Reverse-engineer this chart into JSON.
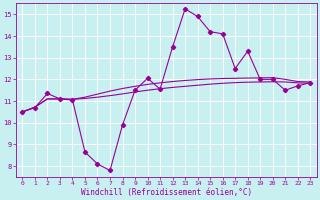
{
  "xlabel": "Windchill (Refroidissement éolien,°C)",
  "bg_color": "#c8f0f0",
  "grid_color": "#b8d8d8",
  "line_color": "#990099",
  "x_ticks": [
    0,
    1,
    2,
    3,
    4,
    5,
    6,
    7,
    8,
    9,
    10,
    11,
    12,
    13,
    14,
    15,
    16,
    17,
    18,
    19,
    20,
    21,
    22,
    23
  ],
  "ylim": [
    7.5,
    15.5
  ],
  "xlim": [
    -0.5,
    23.5
  ],
  "yticks": [
    8,
    9,
    10,
    11,
    12,
    13,
    14,
    15
  ],
  "main_line": {
    "x": [
      0,
      1,
      2,
      3,
      4,
      5,
      6,
      7,
      8,
      9,
      10,
      11,
      12,
      13,
      14,
      15,
      16,
      17,
      18,
      19,
      20,
      21,
      22,
      23
    ],
    "y": [
      10.5,
      10.7,
      11.35,
      11.1,
      11.05,
      8.65,
      8.1,
      7.8,
      9.9,
      11.5,
      12.05,
      11.55,
      13.5,
      15.25,
      14.9,
      14.2,
      14.1,
      12.5,
      13.3,
      12.0,
      12.0,
      11.5,
      11.7,
      11.85
    ]
  },
  "smooth_line1": {
    "x": [
      0,
      1,
      2,
      3,
      4,
      5,
      6,
      7,
      8,
      9,
      10,
      11,
      12,
      13,
      14,
      15,
      16,
      17,
      18,
      19,
      20,
      21,
      22,
      23
    ],
    "y": [
      10.5,
      10.72,
      11.1,
      11.1,
      11.08,
      11.12,
      11.18,
      11.25,
      11.33,
      11.42,
      11.5,
      11.57,
      11.63,
      11.68,
      11.73,
      11.78,
      11.82,
      11.85,
      11.87,
      11.88,
      11.89,
      11.88,
      11.84,
      11.82
    ]
  },
  "smooth_line2": {
    "x": [
      0,
      1,
      2,
      3,
      4,
      5,
      6,
      7,
      8,
      9,
      10,
      11,
      12,
      13,
      14,
      15,
      16,
      17,
      18,
      19,
      20,
      21,
      22,
      23
    ],
    "y": [
      10.5,
      10.72,
      11.1,
      11.1,
      11.08,
      11.18,
      11.32,
      11.46,
      11.58,
      11.68,
      11.77,
      11.84,
      11.9,
      11.95,
      11.99,
      12.02,
      12.04,
      12.05,
      12.06,
      12.07,
      12.08,
      12.0,
      11.9,
      11.88
    ]
  }
}
